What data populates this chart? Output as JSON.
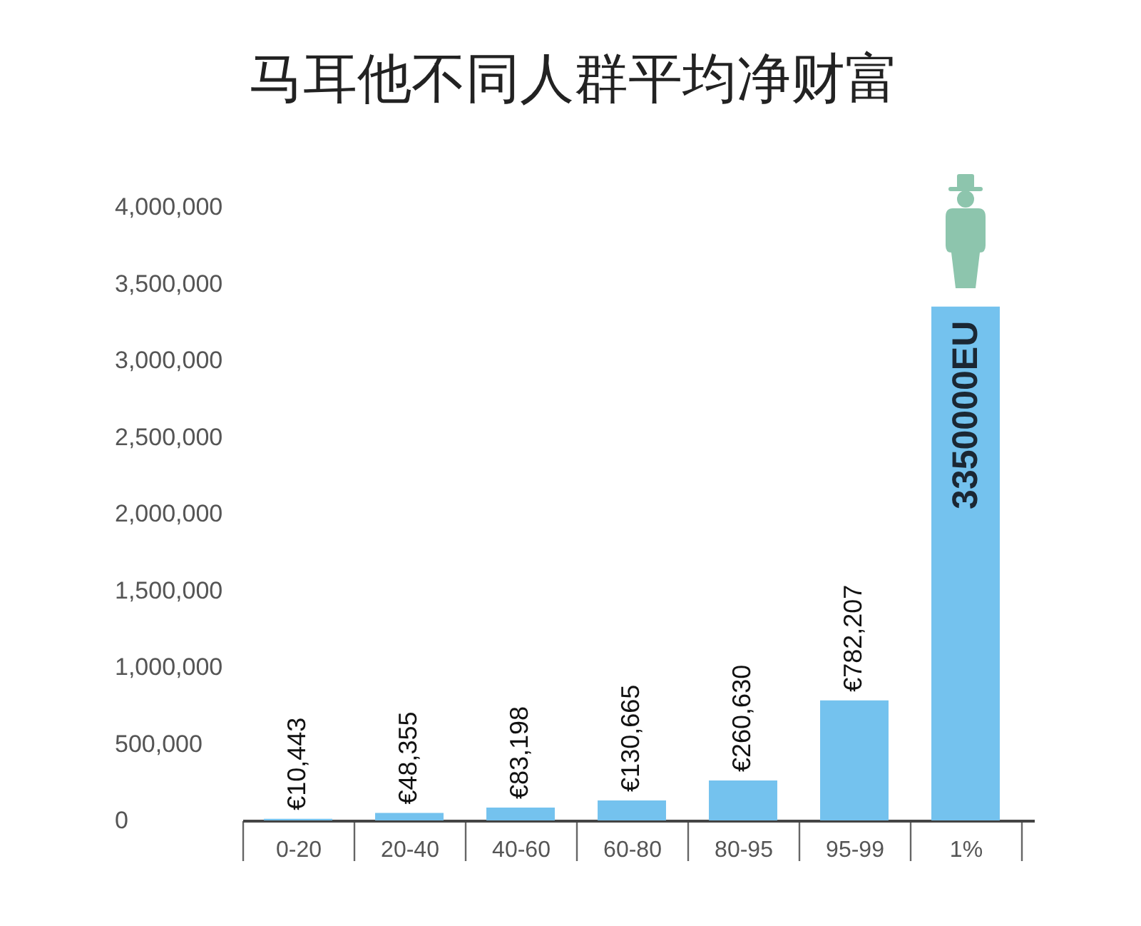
{
  "chart_data": {
    "type": "bar",
    "title": "马耳他不同人群平均净财富",
    "categories": [
      "0-20",
      "20-40",
      "40-60",
      "60-80",
      "80-95",
      "95-99",
      "1%"
    ],
    "values": [
      10443,
      48355,
      83198,
      130665,
      260630,
      782207,
      3350000
    ],
    "color": "#74c2ee",
    "value_labels": [
      "€10,443",
      "€48,355",
      "€83,198",
      "€130,665",
      "€260,630",
      "€782,207",
      "3350000EU"
    ],
    "ylim": [
      0,
      4000000
    ],
    "yticks": [
      0,
      {
        "value": 500000,
        "label": "500,000"
      },
      {
        "value": 1000000,
        "label": "1,000,000"
      },
      {
        "value": 1500000,
        "label": "1,500,000"
      },
      {
        "value": 2000000,
        "label": "2,000,000"
      },
      {
        "value": 2500000,
        "label": "2,500,000"
      },
      {
        "value": 3000000,
        "label": "3,000,000"
      },
      {
        "value": 3500000,
        "label": "3,500,000"
      },
      {
        "value": 4000000,
        "label": "4,000,000"
      }
    ]
  }
}
